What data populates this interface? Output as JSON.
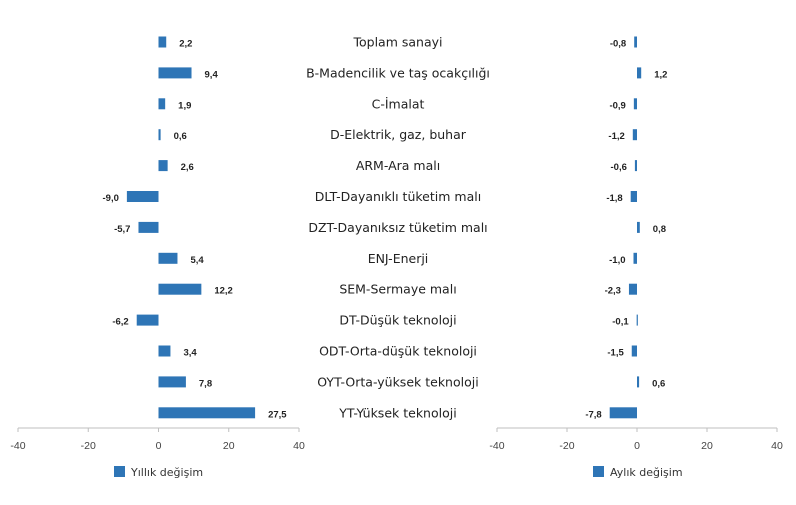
{
  "colors": {
    "bar": "#2e75b6",
    "axis": "#bfbfbf",
    "text": "#222222"
  },
  "chart_data": [
    {
      "type": "bar",
      "orientation": "horizontal",
      "categories": [
        "Toplam sanayi",
        "B-Madencilik ve taş ocakçılığı",
        "C-İmalat",
        "D-Elektrik, gaz, buhar",
        "ARM-Ara malı",
        "DLT-Dayanıklı tüketim malı",
        "DZT-Dayanıksız tüketim malı",
        "ENJ-Enerji",
        "SEM-Sermaye malı",
        "DT-Düşük teknoloji",
        "ODT-Orta-düşük teknoloji",
        "OYT-Orta-yüksek teknoloji",
        "YT-Yüksek teknoloji"
      ],
      "series": [
        {
          "name": "Yıllık değişim",
          "values": [
            2.2,
            9.4,
            1.9,
            0.6,
            2.6,
            -9.0,
            -5.7,
            5.4,
            12.2,
            -6.2,
            3.4,
            7.8,
            27.5
          ]
        }
      ],
      "value_labels": [
        "2,2",
        "9,4",
        "1,9",
        "0,6",
        "2,6",
        "-9,0",
        "-5,7",
        "5,4",
        "12,2",
        "-6,2",
        "3,4",
        "7,8",
        "27,5"
      ],
      "xlim": [
        -40,
        40
      ],
      "ticks": [
        -40,
        -20,
        0,
        20,
        40
      ],
      "tick_labels": [
        "-40",
        "-20",
        "0",
        "20",
        "40"
      ],
      "legend": "bottom"
    },
    {
      "type": "bar",
      "orientation": "horizontal",
      "categories": [
        "Toplam sanayi",
        "B-Madencilik ve taş ocakçılığı",
        "C-İmalat",
        "D-Elektrik, gaz, buhar",
        "ARM-Ara malı",
        "DLT-Dayanıklı tüketim malı",
        "DZT-Dayanıksız tüketim malı",
        "ENJ-Enerji",
        "SEM-Sermaye malı",
        "DT-Düşük teknoloji",
        "ODT-Orta-düşük teknoloji",
        "OYT-Orta-yüksek teknoloji",
        "YT-Yüksek teknoloji"
      ],
      "series": [
        {
          "name": "Aylık değişim",
          "values": [
            -0.8,
            1.2,
            -0.9,
            -1.2,
            -0.6,
            -1.8,
            0.8,
            -1.0,
            -2.3,
            -0.1,
            -1.5,
            0.6,
            -7.8
          ]
        }
      ],
      "value_labels": [
        "-0,8",
        "1,2",
        "-0,9",
        "-1,2",
        "-0,6",
        "-1,8",
        "0,8",
        "-1,0",
        "-2,3",
        "-0,1",
        "-1,5",
        "0,6",
        "-7,8"
      ],
      "xlim": [
        -40,
        40
      ],
      "ticks": [
        -40,
        -20,
        0,
        20,
        40
      ],
      "tick_labels": [
        "-40",
        "-20",
        "0",
        "20",
        "40"
      ],
      "legend": "bottom"
    }
  ]
}
